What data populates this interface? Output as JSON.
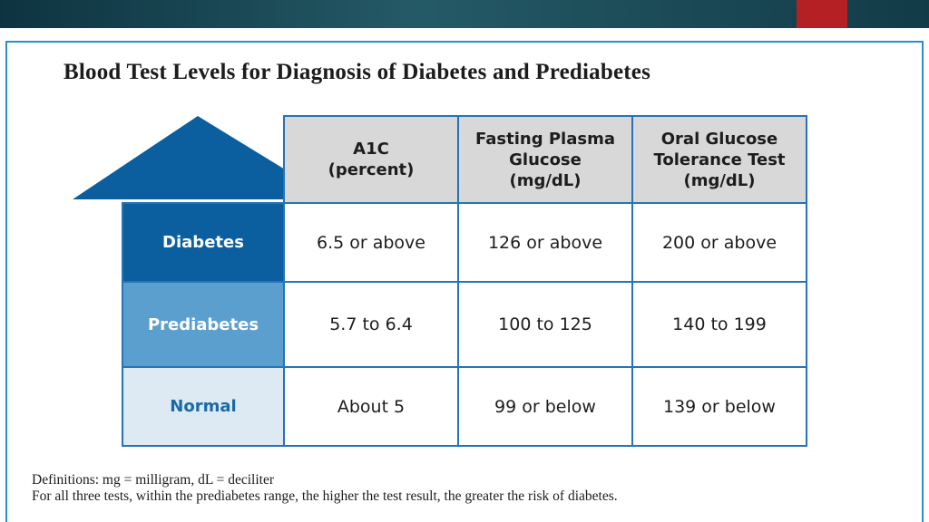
{
  "colors": {
    "header_bar": "#1a4a56",
    "accent": "#b52025",
    "frame_border": "#2a8fc8",
    "arrow": "#0c5f9f",
    "diabetes_row": "#0c5f9f",
    "prediabetes_row": "#5b9fcf",
    "normal_row": "#dde9f3",
    "table_header_bg": "#d8d8d8"
  },
  "figure": {
    "title": "Blood Test Levels for Diagnosis of Diabetes and Prediabetes",
    "arrow_icon": "up-arrow-icon",
    "columns": [
      {
        "line1": "A1C",
        "line2": "(percent)",
        "line3": ""
      },
      {
        "line1": "Fasting Plasma",
        "line2": "Glucose",
        "line3": "(mg/dL)"
      },
      {
        "line1": "Oral Glucose",
        "line2": "Tolerance Test",
        "line3": "(mg/dL)"
      }
    ],
    "rows": [
      {
        "label": "Diabetes",
        "values": [
          "6.5 or above",
          "126 or above",
          "200 or above"
        ]
      },
      {
        "label": "Prediabetes",
        "values": [
          "5.7 to 6.4",
          "100 to 125",
          "140 to 199"
        ]
      },
      {
        "label": "Normal",
        "values": [
          "About 5",
          "99 or below",
          "139 or below"
        ]
      }
    ],
    "definitions": [
      "Definitions:  mg = milligram, dL = deciliter",
      "For all three tests, within the prediabetes range, the higher the test result, the greater the risk of diabetes."
    ]
  }
}
